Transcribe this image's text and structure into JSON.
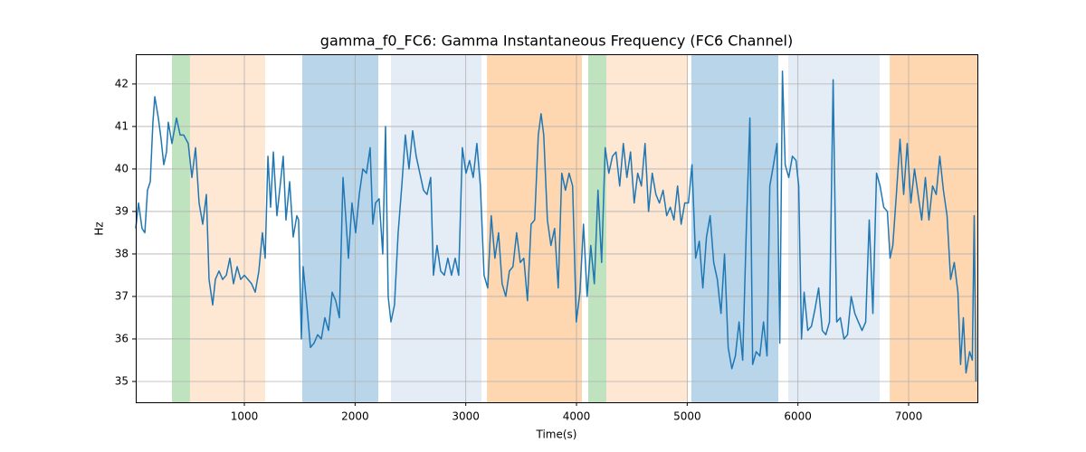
{
  "chart_data": {
    "type": "line",
    "title": "gamma_f0_FC6: Gamma Instantaneous Frequency (FC6 Channel)",
    "xlabel": "Time(s)",
    "ylabel": "Hz",
    "xlim": [
      19,
      7621
    ],
    "ylim": [
      34.51,
      42.7
    ],
    "xticks": [
      1000,
      2000,
      3000,
      4000,
      5000,
      6000,
      7000
    ],
    "yticks": [
      35,
      36,
      37,
      38,
      39,
      40,
      41,
      42
    ],
    "grid": true,
    "spans": [
      {
        "start": 346,
        "end": 509,
        "color": "#bfe2bf"
      },
      {
        "start": 509,
        "end": 1188,
        "color": "#ffe8d3"
      },
      {
        "start": 1523,
        "end": 2210,
        "color": "#b9d5ea"
      },
      {
        "start": 2324,
        "end": 3142,
        "color": "#e4ecf6"
      },
      {
        "start": 3191,
        "end": 4049,
        "color": "#fed7b1"
      },
      {
        "start": 4106,
        "end": 4270,
        "color": "#bfe2bf"
      },
      {
        "start": 4270,
        "end": 5006,
        "color": "#ffe8d3"
      },
      {
        "start": 5038,
        "end": 5823,
        "color": "#b9d5ea"
      },
      {
        "start": 5913,
        "end": 6739,
        "color": "#e4ecf6"
      },
      {
        "start": 6829,
        "end": 7621,
        "color": "#fed7b1"
      }
    ],
    "series": [
      {
        "color": "#1f77b4",
        "x": [
          19,
          44,
          76,
          101,
          125,
          150,
          174,
          191,
          223,
          248,
          272,
          297,
          313,
          346,
          387,
          420,
          452,
          493,
          526,
          559,
          591,
          624,
          657,
          681,
          714,
          738,
          771,
          804,
          837,
          869,
          902,
          935,
          967,
          1000,
          1033,
          1065,
          1098,
          1131,
          1163,
          1188,
          1213,
          1237,
          1262,
          1294,
          1327,
          1351,
          1376,
          1409,
          1441,
          1474,
          1490,
          1515,
          1531,
          1564,
          1597,
          1629,
          1662,
          1695,
          1727,
          1760,
          1793,
          1825,
          1858,
          1891,
          1915,
          1940,
          1972,
          2005,
          2038,
          2070,
          2103,
          2136,
          2160,
          2185,
          2217,
          2250,
          2275,
          2299,
          2324,
          2356,
          2389,
          2422,
          2454,
          2487,
          2520,
          2552,
          2585,
          2618,
          2650,
          2683,
          2708,
          2740,
          2773,
          2806,
          2838,
          2871,
          2904,
          2936,
          2969,
          3002,
          3034,
          3067,
          3100,
          3132,
          3165,
          3198,
          3230,
          3263,
          3296,
          3328,
          3361,
          3394,
          3426,
          3459,
          3492,
          3524,
          3557,
          3590,
          3622,
          3655,
          3680,
          3704,
          3737,
          3769,
          3802,
          3835,
          3867,
          3900,
          3933,
          3965,
          3998,
          4031,
          4063,
          4096,
          4129,
          4161,
          4194,
          4227,
          4259,
          4292,
          4325,
          4357,
          4390,
          4423,
          4455,
          4488,
          4521,
          4553,
          4586,
          4619,
          4651,
          4684,
          4717,
          4749,
          4782,
          4815,
          4847,
          4880,
          4913,
          4945,
          4978,
          5011,
          5043,
          5076,
          5109,
          5141,
          5174,
          5207,
          5239,
          5272,
          5305,
          5337,
          5370,
          5403,
          5435,
          5468,
          5501,
          5533,
          5566,
          5591,
          5623,
          5656,
          5689,
          5721,
          5746,
          5779,
          5811,
          5836,
          5860,
          5885,
          5917,
          5950,
          5983,
          6007,
          6032,
          6056,
          6089,
          6122,
          6154,
          6187,
          6220,
          6252,
          6285,
          6318,
          6350,
          6383,
          6416,
          6448,
          6481,
          6514,
          6546,
          6579,
          6612,
          6644,
          6677,
          6710,
          6742,
          6775,
          6808,
          6832,
          6857,
          6889,
          6922,
          6955,
          6987,
          7020,
          7053,
          7085,
          7118,
          7151,
          7183,
          7216,
          7249,
          7281,
          7314,
          7347,
          7379,
          7412,
          7445,
          7469,
          7494,
          7518,
          7551,
          7575,
          7592,
          7608
        ],
        "values": [
          38.6,
          39.2,
          38.6,
          38.5,
          39.5,
          39.7,
          41.1,
          41.7,
          41.2,
          40.7,
          40.1,
          40.4,
          41.1,
          40.6,
          41.2,
          40.8,
          40.8,
          40.6,
          39.8,
          40.5,
          39.2,
          38.7,
          39.4,
          37.4,
          36.8,
          37.4,
          37.6,
          37.4,
          37.5,
          37.9,
          37.3,
          37.7,
          37.4,
          37.5,
          37.4,
          37.3,
          37.1,
          37.6,
          38.5,
          37.9,
          40.3,
          39.1,
          40.4,
          38.9,
          39.7,
          40.3,
          38.8,
          39.7,
          38.4,
          38.9,
          38.8,
          36.0,
          37.7,
          36.8,
          35.8,
          35.9,
          36.1,
          36.0,
          36.5,
          36.2,
          37.1,
          36.9,
          36.5,
          39.8,
          38.9,
          37.9,
          39.2,
          38.5,
          39.4,
          40.0,
          39.9,
          40.5,
          38.7,
          39.2,
          39.3,
          38.0,
          41.0,
          37.0,
          36.4,
          36.8,
          38.5,
          39.6,
          40.8,
          40.0,
          40.9,
          40.3,
          39.9,
          39.5,
          39.4,
          39.8,
          37.5,
          38.2,
          37.6,
          37.5,
          37.9,
          37.5,
          37.9,
          37.5,
          40.5,
          39.9,
          40.2,
          39.8,
          40.6,
          39.6,
          37.5,
          37.2,
          38.9,
          37.9,
          38.5,
          37.3,
          37.0,
          37.6,
          37.7,
          38.5,
          37.8,
          37.9,
          36.9,
          38.7,
          38.8,
          40.8,
          41.3,
          40.8,
          38.8,
          38.2,
          38.6,
          37.2,
          39.9,
          39.5,
          39.9,
          39.6,
          36.4,
          37.1,
          38.7,
          37.0,
          38.2,
          37.3,
          39.5,
          37.8,
          40.5,
          39.9,
          40.3,
          40.4,
          39.6,
          40.6,
          39.8,
          40.4,
          39.2,
          39.9,
          39.6,
          40.6,
          39.0,
          39.9,
          39.4,
          39.2,
          39.5,
          38.9,
          39.1,
          38.8,
          39.6,
          38.7,
          39.2,
          39.2,
          40.1,
          37.9,
          38.3,
          37.2,
          38.4,
          38.9,
          37.8,
          37.4,
          36.6,
          38.0,
          35.8,
          35.3,
          35.6,
          36.4,
          35.5,
          38.5,
          41.2,
          35.4,
          35.7,
          35.6,
          36.4,
          35.6,
          39.6,
          40.1,
          40.6,
          35.9,
          42.3,
          40.1,
          39.8,
          40.3,
          40.2,
          39.6,
          36.0,
          37.1,
          36.2,
          36.3,
          36.7,
          37.2,
          36.2,
          36.1,
          36.4,
          42.1,
          36.4,
          36.5,
          36.0,
          36.1,
          37.0,
          36.6,
          36.4,
          36.2,
          36.4,
          38.8,
          36.6,
          39.9,
          39.6,
          39.1,
          39.0,
          37.9,
          38.2,
          39.4,
          40.7,
          39.4,
          40.6,
          39.2,
          40.0,
          39.4,
          38.8,
          39.8,
          38.8,
          39.6,
          39.4,
          40.3,
          39.5,
          38.9,
          37.4,
          37.8,
          37.1,
          35.4,
          36.5,
          35.2,
          35.7,
          35.5,
          38.9,
          35.0
        ]
      }
    ]
  }
}
